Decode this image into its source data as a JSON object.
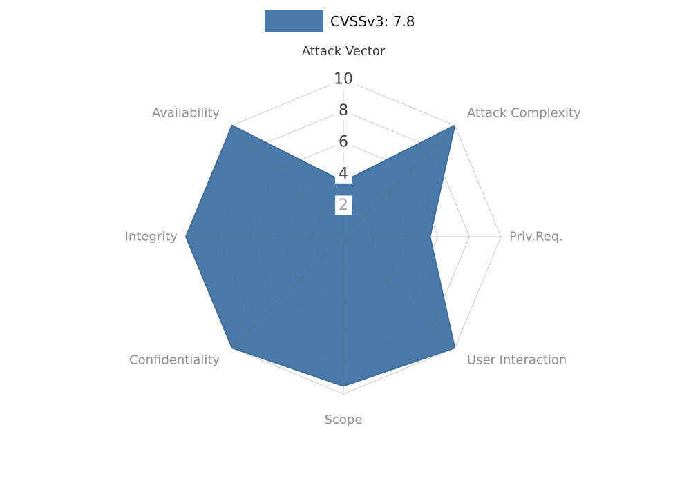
{
  "legend": {
    "label": "CVSSv3: 7.8",
    "swatch_color": "#4a7aa9"
  },
  "chart_data": {
    "type": "radar",
    "title": "CVSSv3: 7.8",
    "categories": [
      "Attack Vector",
      "Attack Complexity",
      "Priv.Req.",
      "User Interaction",
      "Scope",
      "Confidentiality",
      "Integrity",
      "Availability"
    ],
    "series": [
      {
        "name": "CVSSv3: 7.8",
        "values": [
          3.5,
          10,
          5.5,
          10,
          9.5,
          10,
          10,
          10
        ]
      }
    ],
    "radial_ticks": [
      2,
      4,
      6,
      8,
      10
    ],
    "rlim": [
      0,
      10
    ],
    "grid": true,
    "legend_position": "top-center",
    "fill_color": "#4a7aa9",
    "edge_color": "#3e6c98",
    "grid_color": "#5f6a74",
    "grid_opacity": 0.32,
    "tick_color": "#3f3f3f",
    "tick_muted_color": "#9aa0a4",
    "tick_bg_color": "#ffffff",
    "axis_label_color": "#8b9094",
    "axis_label_highlight": "#3c3c3c",
    "highlight_category_index": 0
  }
}
